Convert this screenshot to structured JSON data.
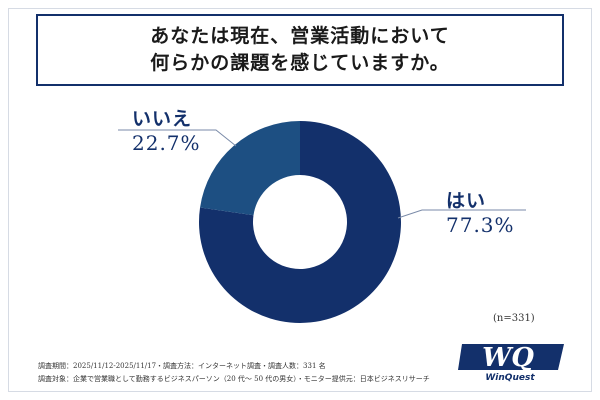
{
  "header": {
    "title_line1": "あなたは現在、営業活動において",
    "title_line2": "何らかの課題を感じていますか。"
  },
  "chart_data": {
    "type": "pie",
    "donut": true,
    "categories": [
      "はい",
      "いいえ"
    ],
    "values": [
      77.3,
      22.7
    ],
    "value_labels": [
      "77.3%",
      "22.7%"
    ],
    "colors": [
      "#13306b",
      "#1d4f82"
    ],
    "title": "",
    "legend": "none"
  },
  "sample_size": "(n=331)",
  "logo": {
    "text": "WinQuest",
    "mark": "WQ"
  },
  "footnotes": {
    "line1": "調査期間：2025/11/12-2025/11/17・調査方法：インターネット調査・調査人数：331 名",
    "line2": "調査対象：企業で営業職として勤務するビジネスパーソン（20 代～ 50 代の男女）・モニター提供元：日本ビジネスリサーチ"
  },
  "colors": {
    "primary": "#13306b",
    "secondary": "#1d4f82",
    "leader_line": "#7a8aa8"
  }
}
